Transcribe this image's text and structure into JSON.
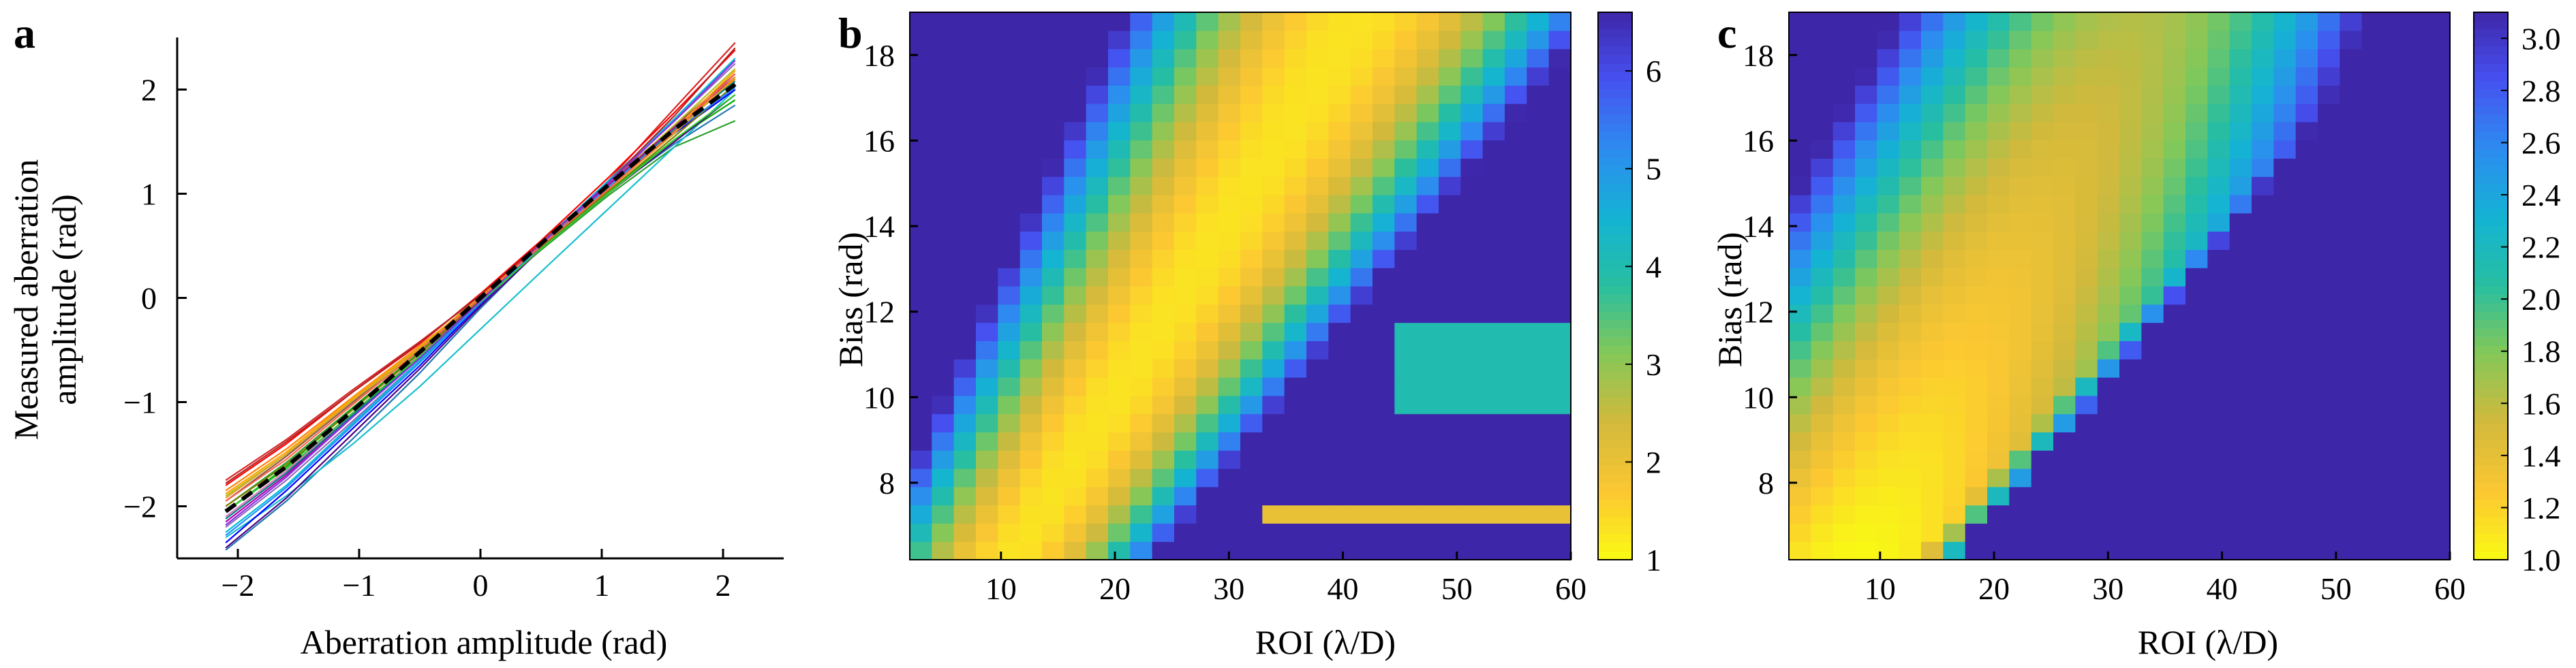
{
  "figure": {
    "panel_a_label": "a",
    "panel_b_label": "b",
    "panel_c_label": "c"
  },
  "chart_data": [
    {
      "panel": "a",
      "type": "line",
      "xlabel": "Aberration amplitude (rad)",
      "ylabel_line1": "Measured aberration",
      "ylabel_line2": "amplitude (rad)",
      "xlim": [
        -2.5,
        2.5
      ],
      "ylim": [
        -2.5,
        2.5
      ],
      "xticks": [
        -2,
        -1,
        0,
        1,
        2
      ],
      "yticks": [
        -2,
        -1,
        0,
        1,
        2
      ],
      "x": [
        -2.1,
        -1.6,
        -1.05,
        -0.5,
        0,
        0.5,
        1.05,
        1.6,
        2.1
      ],
      "mean_curve": {
        "style": "dashed-black",
        "values": [
          -2.05,
          -1.62,
          -1.08,
          -0.52,
          0.0,
          0.52,
          1.08,
          1.62,
          2.05
        ]
      },
      "series_colors": [
        "#d62728",
        "#1f77b4",
        "#ff7f0e",
        "#2ca02c",
        "#9467bd",
        "#8c564b",
        "#e377c2",
        "#17becf",
        "#bcbd22",
        "#0000ff",
        "#ff0000",
        "#00aa00",
        "#aa00aa",
        "#00bcd4",
        "#ffa500",
        "#4b0082",
        "#808000",
        "#008080",
        "#b22222",
        "#1e90ff",
        "#daa520",
        "#32cd32",
        "#8a2be2",
        "#ff6347"
      ],
      "series": [
        {
          "values": [
            -1.75,
            -1.36,
            -0.88,
            -0.42,
            0.02,
            0.5,
            1.12,
            1.82,
            2.45
          ]
        },
        {
          "values": [
            -2.42,
            -1.95,
            -1.35,
            -0.72,
            -0.1,
            0.48,
            1.02,
            1.48,
            1.85
          ]
        },
        {
          "values": [
            -1.85,
            -1.45,
            -0.95,
            -0.46,
            0.0,
            0.5,
            1.05,
            1.62,
            2.1
          ]
        },
        {
          "values": [
            -2.0,
            -1.58,
            -1.05,
            -0.52,
            -0.02,
            0.46,
            0.98,
            1.45,
            1.7
          ]
        },
        {
          "values": [
            -2.2,
            -1.75,
            -1.18,
            -0.6,
            -0.05,
            0.5,
            1.1,
            1.7,
            2.25
          ]
        },
        {
          "values": [
            -1.95,
            -1.52,
            -1.0,
            -0.48,
            0.02,
            0.54,
            1.1,
            1.65,
            2.15
          ]
        },
        {
          "values": [
            -2.1,
            -1.66,
            -1.1,
            -0.55,
            -0.02,
            0.5,
            1.05,
            1.6,
            2.0
          ]
        },
        {
          "values": [
            -2.3,
            -1.9,
            -1.4,
            -0.85,
            -0.3,
            0.25,
            0.85,
            1.45,
            2.0
          ]
        },
        {
          "values": [
            -1.9,
            -1.5,
            -0.98,
            -0.5,
            0.0,
            0.52,
            1.08,
            1.66,
            2.2
          ]
        },
        {
          "values": [
            -2.35,
            -1.85,
            -1.25,
            -0.65,
            -0.06,
            0.5,
            1.05,
            1.58,
            2.0
          ]
        },
        {
          "values": [
            -1.8,
            -1.4,
            -0.9,
            -0.44,
            0.04,
            0.55,
            1.15,
            1.78,
            2.38
          ]
        },
        {
          "values": [
            -2.05,
            -1.62,
            -1.06,
            -0.52,
            0.0,
            0.5,
            1.02,
            1.52,
            1.9
          ]
        },
        {
          "values": [
            -2.15,
            -1.7,
            -1.12,
            -0.56,
            -0.02,
            0.52,
            1.08,
            1.64,
            2.12
          ]
        },
        {
          "values": [
            -2.25,
            -1.8,
            -1.2,
            -0.6,
            -0.04,
            0.52,
            1.12,
            1.72,
            2.3
          ]
        },
        {
          "values": [
            -1.88,
            -1.48,
            -0.96,
            -0.47,
            0.01,
            0.51,
            1.06,
            1.62,
            2.18
          ]
        },
        {
          "values": [
            -2.4,
            -1.92,
            -1.3,
            -0.68,
            -0.08,
            0.47,
            1.0,
            1.5,
            1.95
          ]
        },
        {
          "values": [
            -2.0,
            -1.6,
            -1.07,
            -0.53,
            -0.01,
            0.49,
            1.02,
            1.55,
            2.05
          ]
        },
        {
          "values": [
            -2.12,
            -1.68,
            -1.12,
            -0.57,
            -0.03,
            0.5,
            1.06,
            1.62,
            2.08
          ]
        },
        {
          "values": [
            -1.78,
            -1.38,
            -0.9,
            -0.43,
            0.03,
            0.52,
            1.1,
            1.75,
            2.4
          ]
        },
        {
          "values": [
            -2.28,
            -1.82,
            -1.22,
            -0.62,
            -0.05,
            0.5,
            1.06,
            1.6,
            2.02
          ]
        },
        {
          "values": [
            -1.92,
            -1.5,
            -0.98,
            -0.48,
            0.0,
            0.5,
            1.04,
            1.58,
            2.12
          ]
        },
        {
          "values": [
            -2.05,
            -1.64,
            -1.1,
            -0.56,
            -0.04,
            0.47,
            1.0,
            1.52,
            1.95
          ]
        },
        {
          "values": [
            -2.18,
            -1.72,
            -1.14,
            -0.58,
            -0.03,
            0.52,
            1.1,
            1.7,
            2.28
          ]
        },
        {
          "values": [
            -1.95,
            -1.55,
            -1.02,
            -0.5,
            0.0,
            0.5,
            1.04,
            1.6,
            2.15
          ]
        }
      ]
    },
    {
      "panel": "b",
      "type": "heatmap",
      "xlabel": "ROI (λ/D)",
      "ylabel": "Bias (rad)",
      "xlim": [
        2,
        60
      ],
      "ylim": [
        6.2,
        19
      ],
      "xticks": [
        10,
        20,
        30,
        40,
        50,
        60
      ],
      "yticks": [
        8,
        10,
        12,
        14,
        16,
        18
      ],
      "clim": [
        1,
        6.6
      ],
      "colorbar_ticks": [
        "1",
        "2",
        "3",
        "4",
        "5",
        "6"
      ],
      "colormap": "parula-reversed",
      "grid": "30 columns × 30 rows"
    },
    {
      "panel": "c",
      "type": "heatmap",
      "xlabel": "ROI (λ/D)",
      "ylabel": "Bias (rad)",
      "xlim": [
        2,
        60
      ],
      "ylim": [
        6.2,
        19
      ],
      "xticks": [
        10,
        20,
        30,
        40,
        50,
        60
      ],
      "yticks": [
        8,
        10,
        12,
        14,
        16,
        18
      ],
      "clim": [
        1.0,
        3.1
      ],
      "colorbar_ticks": [
        "1.0",
        "1.2",
        "1.4",
        "1.6",
        "1.8",
        "2.0",
        "2.2",
        "2.4",
        "2.6",
        "2.8",
        "3.0"
      ],
      "colormap": "parula-reversed",
      "grid": "30 columns × 30 rows"
    }
  ]
}
